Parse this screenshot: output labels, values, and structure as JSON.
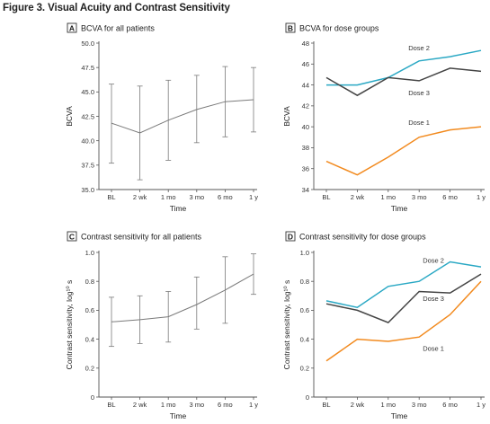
{
  "figure_title": "Figure 3. Visual Acuity and Contrast Sensitivity",
  "colors": {
    "dose1": "#f28a1e",
    "dose2": "#2aa8c4",
    "dose3": "#444444",
    "all": "#7a7a7a",
    "errorbar": "#7a7a7a",
    "axis": "#555555"
  },
  "chart_data": [
    {
      "id": "A",
      "type": "line",
      "panel_letter": "A",
      "title": "BCVA for all patients",
      "xlabel": "Time",
      "ylabel": "BCVA",
      "categories": [
        "BL",
        "2 wk",
        "1 mo",
        "3 mo",
        "6 mo",
        "1 y"
      ],
      "ylim": [
        35.0,
        50.0
      ],
      "yticks": [
        "35.0",
        "37.5",
        "40.0",
        "42.5",
        "45.0",
        "47.5",
        "50.0"
      ],
      "ytick_values": [
        35.0,
        37.5,
        40.0,
        42.5,
        45.0,
        47.5,
        50.0
      ],
      "series": [
        {
          "values": [
            41.8,
            40.8,
            42.1,
            43.2,
            44.0,
            44.2
          ],
          "lower": [
            37.7,
            36.0,
            38.0,
            39.8,
            40.4,
            40.9
          ],
          "upper": [
            45.8,
            45.6,
            46.2,
            46.7,
            47.6,
            47.5
          ]
        }
      ]
    },
    {
      "id": "B",
      "type": "line",
      "panel_letter": "B",
      "title": "BCVA for dose groups",
      "xlabel": "Time",
      "ylabel": "BCVA",
      "categories": [
        "BL",
        "2 wk",
        "1 mo",
        "3 mo",
        "6 mo",
        "1 y"
      ],
      "ylim": [
        34,
        48
      ],
      "yticks": [
        "34",
        "36",
        "38",
        "40",
        "42",
        "44",
        "46",
        "48"
      ],
      "ytick_values": [
        34,
        36,
        38,
        40,
        42,
        44,
        46,
        48
      ],
      "series": [
        {
          "name": "Dose 1",
          "values": [
            36.7,
            35.4,
            37.1,
            39.0,
            39.7,
            40.0
          ]
        },
        {
          "name": "Dose 2",
          "values": [
            44.0,
            44.0,
            44.7,
            46.3,
            46.7,
            47.3
          ]
        },
        {
          "name": "Dose 3",
          "values": [
            44.7,
            43.0,
            44.7,
            44.4,
            45.6,
            45.3
          ]
        }
      ]
    },
    {
      "id": "C",
      "type": "line",
      "panel_letter": "C",
      "title": "Contrast sensitivity for all patients",
      "xlabel": "Time",
      "ylabel": "Contrast sensitivity, log¹⁰ s",
      "categories": [
        "BL",
        "2 wk",
        "1 mo",
        "3 mo",
        "6 mo",
        "1 y"
      ],
      "ylim": [
        0,
        1.0
      ],
      "yticks": [
        "0",
        "0.2",
        "0.4",
        "0.6",
        "0.8",
        "1.0"
      ],
      "ytick_values": [
        0,
        0.2,
        0.4,
        0.6,
        0.8,
        1.0
      ],
      "series": [
        {
          "values": [
            0.52,
            0.535,
            0.555,
            0.64,
            0.74,
            0.85
          ],
          "lower": [
            0.35,
            0.37,
            0.38,
            0.47,
            0.51,
            0.71
          ],
          "upper": [
            0.69,
            0.7,
            0.73,
            0.83,
            0.97,
            0.99
          ]
        }
      ]
    },
    {
      "id": "D",
      "type": "line",
      "panel_letter": "D",
      "title": "Contrast sensitivity for dose groups",
      "xlabel": "Time",
      "ylabel": "Contrast sensitivity, log¹⁰ s",
      "categories": [
        "BL",
        "2 wk",
        "1 mo",
        "3 mo",
        "6 mo",
        "1 y"
      ],
      "ylim": [
        0,
        1.0
      ],
      "yticks": [
        "0",
        "0.2",
        "0.4",
        "0.6",
        "0.8",
        "1.0"
      ],
      "ytick_values": [
        0,
        0.2,
        0.4,
        0.6,
        0.8,
        1.0
      ],
      "series": [
        {
          "name": "Dose 1",
          "values": [
            0.25,
            0.4,
            0.385,
            0.415,
            0.57,
            0.8
          ]
        },
        {
          "name": "Dose 2",
          "values": [
            0.665,
            0.62,
            0.765,
            0.8,
            0.935,
            0.9
          ]
        },
        {
          "name": "Dose 3",
          "values": [
            0.645,
            0.6,
            0.515,
            0.73,
            0.72,
            0.85
          ]
        }
      ]
    }
  ]
}
